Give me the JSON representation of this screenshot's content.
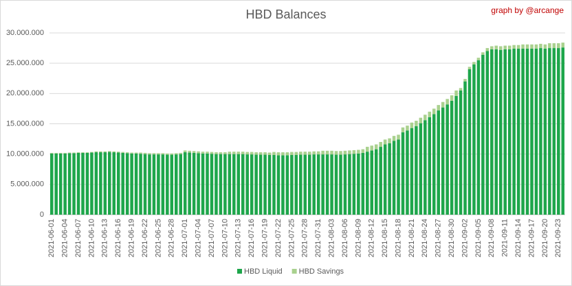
{
  "chart_data": {
    "type": "stacked_bar",
    "title": "HBD Balances",
    "annotation": "graph by @arcange",
    "categories": [
      "2021-06-01",
      null,
      null,
      "2021-06-04",
      null,
      null,
      "2021-06-07",
      null,
      null,
      "2021-06-10",
      null,
      null,
      "2021-06-13",
      null,
      null,
      "2021-06-16",
      null,
      null,
      "2021-06-19",
      null,
      null,
      "2021-06-22",
      null,
      null,
      "2021-06-25",
      null,
      null,
      "2021-06-28",
      null,
      null,
      "2021-07-01",
      null,
      null,
      "2021-07-04",
      null,
      null,
      "2021-07-07",
      null,
      null,
      "2021-07-10",
      null,
      null,
      "2021-07-13",
      null,
      null,
      "2021-07-16",
      null,
      null,
      "2021-07-19",
      null,
      null,
      "2021-07-22",
      null,
      null,
      "2021-07-25",
      null,
      null,
      "2021-07-28",
      null,
      null,
      "2021-07-31",
      null,
      null,
      "2021-08-03",
      null,
      null,
      "2021-08-06",
      null,
      null,
      "2021-08-09",
      null,
      null,
      "2021-08-12",
      null,
      null,
      "2021-08-15",
      null,
      null,
      "2021-08-18",
      null,
      null,
      "2021-08-21",
      null,
      null,
      "2021-08-24",
      null,
      null,
      "2021-08-27",
      null,
      null,
      "2021-08-30",
      null,
      null,
      "2021-09-02",
      null,
      null,
      "2021-09-05",
      null,
      null,
      "2021-09-08",
      null,
      null,
      "2021-09-11",
      null,
      null,
      "2021-09-14",
      null,
      null,
      "2021-09-17",
      null,
      null,
      "2021-09-20",
      null,
      null,
      "2021-09-23",
      null
    ],
    "series": [
      {
        "name": "HBD Liquid",
        "color": "#1ea64b",
        "values": [
          10100000,
          10100000,
          10100000,
          10100000,
          10150000,
          10150000,
          10200000,
          10200000,
          10200000,
          10250000,
          10300000,
          10300000,
          10300000,
          10350000,
          10300000,
          10250000,
          10200000,
          10150000,
          10100000,
          10100000,
          10050000,
          10000000,
          9950000,
          9950000,
          9950000,
          9950000,
          9900000,
          9900000,
          9950000,
          10000000,
          10300000,
          10250000,
          10200000,
          10150000,
          10100000,
          10100000,
          10050000,
          10000000,
          10000000,
          10000000,
          10000000,
          10000000,
          10000000,
          10000000,
          9950000,
          9950000,
          9900000,
          9900000,
          9900000,
          9850000,
          9850000,
          9800000,
          9800000,
          9800000,
          9850000,
          9850000,
          9900000,
          9900000,
          9900000,
          9950000,
          9950000,
          9950000,
          9950000,
          9950000,
          9900000,
          9900000,
          9950000,
          10000000,
          10050000,
          10100000,
          10200000,
          10400000,
          10600000,
          10800000,
          11200000,
          11600000,
          11800000,
          12200000,
          12400000,
          13600000,
          13900000,
          14300000,
          14600000,
          15100000,
          15600000,
          16100000,
          16600000,
          17200000,
          17700000,
          18200000,
          18800000,
          19600000,
          20500000,
          22000000,
          24000000,
          24800000,
          25500000,
          26400000,
          27000000,
          27300000,
          27300000,
          27200000,
          27300000,
          27300000,
          27400000,
          27400000,
          27400000,
          27400000,
          27400000,
          27400000,
          27500000,
          27400000,
          27500000,
          27500000,
          27500000,
          27600000
        ]
      },
      {
        "name": "HBD Savings",
        "color": "#a9d18e",
        "values": [
          100000,
          100000,
          100000,
          100000,
          100000,
          100000,
          100000,
          100000,
          100000,
          100000,
          150000,
          150000,
          150000,
          150000,
          150000,
          150000,
          150000,
          150000,
          150000,
          150000,
          200000,
          200000,
          200000,
          200000,
          200000,
          200000,
          200000,
          200000,
          200000,
          200000,
          300000,
          300000,
          300000,
          300000,
          300000,
          300000,
          300000,
          300000,
          300000,
          300000,
          400000,
          400000,
          400000,
          400000,
          400000,
          400000,
          400000,
          400000,
          400000,
          400000,
          500000,
          500000,
          500000,
          500000,
          500000,
          500000,
          500000,
          500000,
          500000,
          500000,
          500000,
          600000,
          600000,
          600000,
          600000,
          600000,
          600000,
          600000,
          600000,
          600000,
          600000,
          800000,
          800000,
          800000,
          800000,
          800000,
          800000,
          800000,
          800000,
          800000,
          800000,
          900000,
          900000,
          900000,
          900000,
          900000,
          900000,
          900000,
          900000,
          900000,
          900000,
          900000,
          400000,
          400000,
          400000,
          400000,
          400000,
          400000,
          500000,
          500000,
          600000,
          600000,
          600000,
          600000,
          600000,
          600000,
          700000,
          700000,
          700000,
          700000,
          700000,
          700000,
          800000,
          800000,
          800000,
          800000
        ]
      }
    ],
    "ylim": [
      0,
      30000000
    ],
    "yticks": [
      0,
      {
        "value": 5000000,
        "label": "5.000.000"
      },
      {
        "value": 10000000,
        "label": "10.000.000"
      },
      {
        "value": 15000000,
        "label": "15.000.000"
      },
      {
        "value": 20000000,
        "label": "20.000.000"
      },
      {
        "value": 25000000,
        "label": "25.000.000"
      },
      {
        "value": 30000000,
        "label": "30.000.000"
      }
    ],
    "grid": true,
    "legend": "bottom"
  }
}
